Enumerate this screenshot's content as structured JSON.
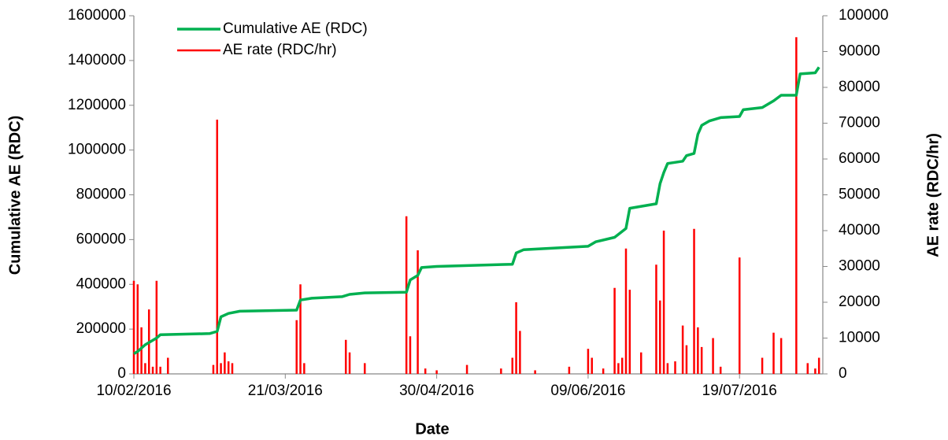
{
  "chart_data": {
    "type": "line",
    "xlabel": "Date",
    "ylabel": "Cumulative AE (RDC)",
    "y2label": "AE rate (RDC/hr)",
    "xlim": [
      "2016-02-10",
      "2016-08-10"
    ],
    "xticks": [
      {
        "value": "2016-02-10",
        "label": "10/02/2016"
      },
      {
        "value": "2016-03-21",
        "label": "21/03/2016"
      },
      {
        "value": "2016-04-30",
        "label": "30/04/2016"
      },
      {
        "value": "2016-06-09",
        "label": "09/06/2016"
      },
      {
        "value": "2016-07-19",
        "label": "19/07/2016"
      }
    ],
    "ylim": [
      0,
      1600000
    ],
    "yticks": [
      0,
      200000,
      400000,
      600000,
      800000,
      1000000,
      1200000,
      1400000,
      1600000
    ],
    "y2lim": [
      0,
      100000
    ],
    "y2ticks": [
      0,
      10000,
      20000,
      30000,
      40000,
      50000,
      60000,
      70000,
      80000,
      90000,
      100000
    ],
    "legend": "top-left",
    "series": [
      {
        "name": "Cumulative AE (RDC)",
        "color": "#00b050",
        "style": "line",
        "x": [
          "2016-02-10",
          "2016-02-11",
          "2016-02-13",
          "2016-02-16",
          "2016-02-17",
          "2016-03-01",
          "2016-03-03",
          "2016-03-04",
          "2016-03-06",
          "2016-03-09",
          "2016-03-24",
          "2016-03-25",
          "2016-03-28",
          "2016-04-05",
          "2016-04-07",
          "2016-04-11",
          "2016-04-22",
          "2016-04-23",
          "2016-04-25",
          "2016-04-26",
          "2016-04-30",
          "2016-05-20",
          "2016-05-21",
          "2016-05-23",
          "2016-06-09",
          "2016-06-11",
          "2016-06-16",
          "2016-06-19",
          "2016-06-20",
          "2016-06-27",
          "2016-06-28",
          "2016-06-29",
          "2016-06-30",
          "2016-07-04",
          "2016-07-05",
          "2016-07-07",
          "2016-07-08",
          "2016-07-09",
          "2016-07-11",
          "2016-07-14",
          "2016-07-19",
          "2016-07-20",
          "2016-07-25",
          "2016-07-28",
          "2016-07-30",
          "2016-08-03",
          "2016-08-04",
          "2016-08-08",
          "2016-08-09"
        ],
        "values": [
          90000,
          100000,
          130000,
          160000,
          175000,
          180000,
          190000,
          255000,
          270000,
          280000,
          285000,
          330000,
          338000,
          345000,
          355000,
          362000,
          365000,
          420000,
          440000,
          475000,
          480000,
          490000,
          540000,
          555000,
          570000,
          590000,
          610000,
          650000,
          740000,
          760000,
          850000,
          900000,
          940000,
          950000,
          975000,
          985000,
          1070000,
          1110000,
          1130000,
          1145000,
          1150000,
          1180000,
          1190000,
          1220000,
          1245000,
          1245000,
          1340000,
          1345000,
          1370000
        ]
      },
      {
        "name": "AE rate (RDC/hr)",
        "color": "#ff0000",
        "axis": "y2",
        "style": "spike",
        "x": [
          "2016-02-10",
          "2016-02-11",
          "2016-02-12",
          "2016-02-13",
          "2016-02-14",
          "2016-02-15",
          "2016-02-16",
          "2016-02-17",
          "2016-02-19",
          "2016-03-02",
          "2016-03-03",
          "2016-03-04",
          "2016-03-05",
          "2016-03-06",
          "2016-03-07",
          "2016-03-24",
          "2016-03-25",
          "2016-03-26",
          "2016-04-06",
          "2016-04-07",
          "2016-04-11",
          "2016-04-22",
          "2016-04-23",
          "2016-04-25",
          "2016-04-27",
          "2016-04-30",
          "2016-05-08",
          "2016-05-17",
          "2016-05-20",
          "2016-05-21",
          "2016-05-22",
          "2016-05-26",
          "2016-06-04",
          "2016-06-09",
          "2016-06-10",
          "2016-06-13",
          "2016-06-16",
          "2016-06-17",
          "2016-06-18",
          "2016-06-19",
          "2016-06-20",
          "2016-06-23",
          "2016-06-27",
          "2016-06-28",
          "2016-06-29",
          "2016-06-30",
          "2016-07-02",
          "2016-07-04",
          "2016-07-05",
          "2016-07-07",
          "2016-07-08",
          "2016-07-09",
          "2016-07-12",
          "2016-07-14",
          "2016-07-19",
          "2016-07-25",
          "2016-07-28",
          "2016-07-30",
          "2016-08-03",
          "2016-08-06",
          "2016-08-08",
          "2016-08-09"
        ],
        "values": [
          26000,
          25000,
          13000,
          3000,
          18000,
          2000,
          26000,
          2000,
          4500,
          2500,
          71000,
          3000,
          6000,
          3500,
          3000,
          15000,
          25000,
          3000,
          9500,
          6000,
          3000,
          44000,
          10500,
          34500,
          1500,
          1000,
          2500,
          1500,
          4500,
          20000,
          12000,
          1000,
          2000,
          7000,
          4500,
          1500,
          24000,
          3000,
          4500,
          35000,
          23500,
          6000,
          30500,
          20500,
          40000,
          3000,
          3500,
          13500,
          8000,
          40500,
          13000,
          7500,
          10000,
          2000,
          32500,
          4500,
          11500,
          10000,
          94000,
          3000,
          1500,
          4500
        ]
      }
    ]
  }
}
